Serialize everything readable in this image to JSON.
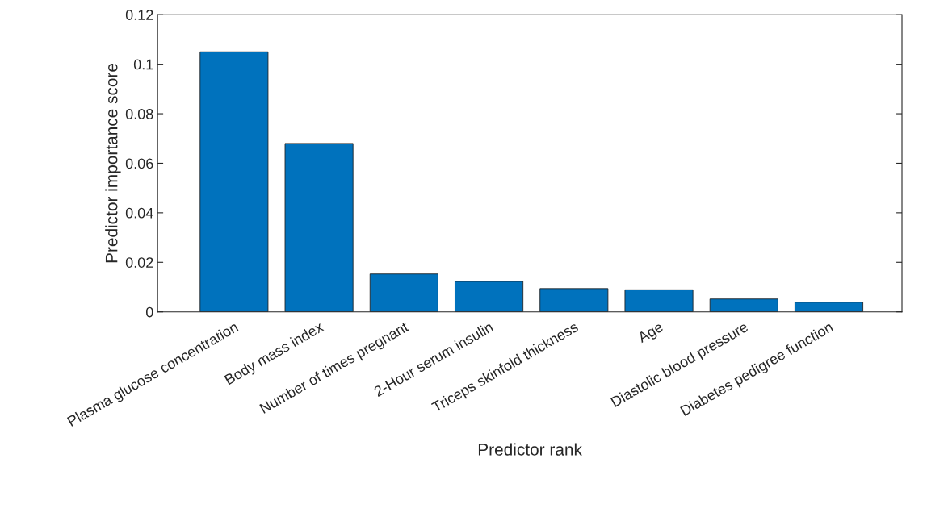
{
  "chart_data": {
    "type": "bar",
    "categories": [
      "Plasma glucose concentration",
      "Body mass index",
      "Number of times pregnant",
      "2-Hour serum insulin",
      "Triceps skinfold thickness",
      "Age",
      "Diastolic blood pressure",
      "Diabetes pedigree function"
    ],
    "values": [
      0.105,
      0.068,
      0.0153,
      0.0123,
      0.0094,
      0.0089,
      0.0052,
      0.0039
    ],
    "color": "#0072bd",
    "xlabel": "Predictor rank",
    "ylabel": "Predictor importance score",
    "ylim": [
      0,
      0.12
    ],
    "yticks": [
      0,
      0.02,
      0.04,
      0.06,
      0.08,
      0.1,
      0.12
    ],
    "grid": false
  }
}
